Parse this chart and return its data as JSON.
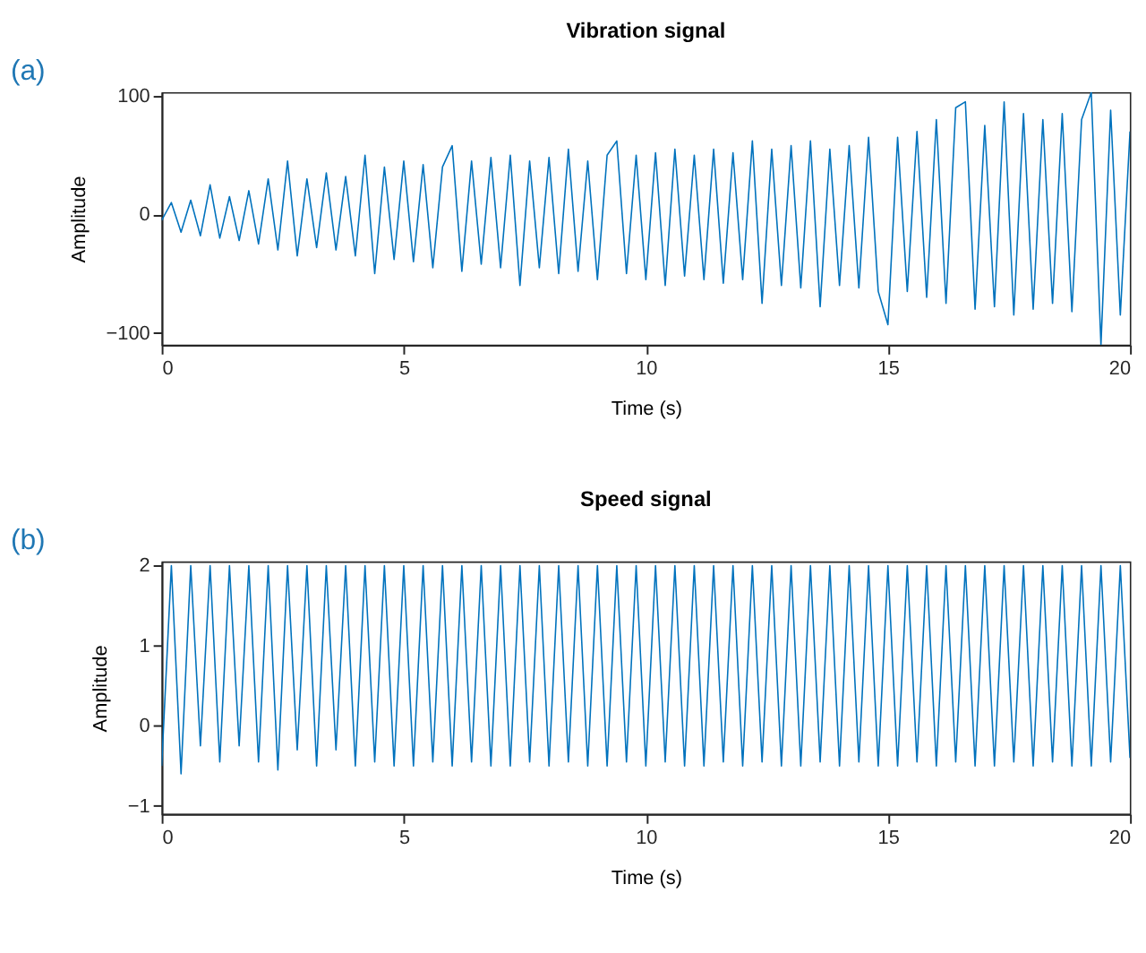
{
  "chart_data": [
    {
      "type": "line",
      "title": "Vibration signal",
      "xlabel": "Time (s)",
      "ylabel": "Amplitude",
      "annotations": [
        "(a)"
      ],
      "color": "#0072bd",
      "grid": false,
      "line_style": "solid",
      "marker": "none",
      "x": [
        0,
        0.2,
        0.4,
        0.6,
        0.8,
        1,
        1.2,
        1.4,
        1.6,
        1.8,
        2,
        2.2,
        2.4,
        2.6,
        2.8,
        3,
        3.2,
        3.4,
        3.6,
        3.8,
        4,
        4.2,
        4.4,
        4.6,
        4.8,
        5,
        5.2,
        5.4,
        5.6,
        5.8,
        6,
        6.2,
        6.4,
        6.6,
        6.8,
        7,
        7.2,
        7.4,
        7.6,
        7.8,
        8,
        8.2,
        8.4,
        8.6,
        8.8,
        9,
        9.2,
        9.4,
        9.6,
        9.8,
        10,
        10.2,
        10.4,
        10.6,
        10.8,
        11,
        11.2,
        11.4,
        11.6,
        11.8,
        12,
        12.2,
        12.4,
        12.6,
        12.8,
        13,
        13.2,
        13.4,
        13.6,
        13.8,
        14,
        14.2,
        14.4,
        14.6,
        14.8,
        15,
        15.2,
        15.4,
        15.6,
        15.8,
        16,
        16.2,
        16.4,
        16.6,
        16.8,
        17,
        17.2,
        17.4,
        17.6,
        17.8,
        18,
        18.2,
        18.4,
        18.6,
        18.8,
        19,
        19.2,
        19.4,
        19.6,
        19.8,
        20
      ],
      "values": [
        -5,
        10,
        -15,
        12,
        -18,
        25,
        -20,
        15,
        -22,
        20,
        -25,
        30,
        -30,
        45,
        -35,
        30,
        -28,
        35,
        -30,
        32,
        -35,
        50,
        -50,
        40,
        -38,
        45,
        -40,
        42,
        -45,
        40,
        58,
        -48,
        45,
        -42,
        48,
        -45,
        50,
        -60,
        45,
        -45,
        48,
        -50,
        55,
        -48,
        45,
        -55,
        50,
        62,
        -50,
        50,
        -55,
        52,
        -60,
        55,
        -52,
        50,
        -55,
        55,
        -58,
        52,
        -55,
        62,
        -75,
        55,
        -60,
        58,
        -62,
        62,
        -78,
        55,
        -60,
        58,
        -62,
        65,
        -65,
        -93,
        65,
        -65,
        70,
        -70,
        80,
        -75,
        90,
        95,
        -80,
        75,
        -78,
        95,
        -85,
        85,
        -80,
        80,
        -75,
        85,
        -82,
        80,
        103,
        -110,
        88,
        -85,
        70
      ],
      "xlim": [
        0,
        20
      ],
      "ylim": [
        -110,
        103
      ],
      "xticks": [
        0,
        5,
        10,
        15,
        20
      ],
      "yticks": [
        -100,
        0,
        100
      ]
    },
    {
      "type": "line",
      "title": "Speed signal",
      "xlabel": "Time (s)",
      "ylabel": "Amplitude",
      "annotations": [
        "(b)"
      ],
      "color": "#0072bd",
      "grid": false,
      "line_style": "solid",
      "marker": "none",
      "x": [
        0,
        0.2,
        0.4,
        0.6,
        0.8,
        1,
        1.2,
        1.4,
        1.6,
        1.8,
        2,
        2.2,
        2.4,
        2.6,
        2.8,
        3,
        3.2,
        3.4,
        3.6,
        3.8,
        4,
        4.2,
        4.4,
        4.6,
        4.8,
        5,
        5.2,
        5.4,
        5.6,
        5.8,
        6,
        6.2,
        6.4,
        6.6,
        6.8,
        7,
        7.2,
        7.4,
        7.6,
        7.8,
        8,
        8.2,
        8.4,
        8.6,
        8.8,
        9,
        9.2,
        9.4,
        9.6,
        9.8,
        10,
        10.2,
        10.4,
        10.6,
        10.8,
        11,
        11.2,
        11.4,
        11.6,
        11.8,
        12,
        12.2,
        12.4,
        12.6,
        12.8,
        13,
        13.2,
        13.4,
        13.6,
        13.8,
        14,
        14.2,
        14.4,
        14.6,
        14.8,
        15,
        15.2,
        15.4,
        15.6,
        15.8,
        16,
        16.2,
        16.4,
        16.6,
        16.8,
        17,
        17.2,
        17.4,
        17.6,
        17.8,
        18,
        18.2,
        18.4,
        18.6,
        18.8,
        19,
        19.2,
        19.4,
        19.6,
        19.8,
        20
      ],
      "values": [
        -0.5,
        2,
        -0.6,
        2,
        -0.25,
        2,
        -0.45,
        2,
        -0.25,
        2,
        -0.45,
        2,
        -0.55,
        2,
        -0.3,
        2,
        -0.5,
        2,
        -0.3,
        2,
        -0.5,
        2,
        -0.45,
        2,
        -0.5,
        2,
        -0.5,
        2,
        -0.45,
        2,
        -0.5,
        2,
        -0.45,
        2,
        -0.5,
        2,
        -0.5,
        2,
        -0.45,
        2,
        -0.5,
        2,
        -0.45,
        2,
        -0.5,
        2,
        -0.5,
        2,
        -0.45,
        2,
        -0.5,
        2,
        -0.45,
        2,
        -0.5,
        2,
        -0.5,
        2,
        -0.45,
        2,
        -0.5,
        2,
        -0.45,
        2,
        -0.5,
        2,
        -0.5,
        2,
        -0.45,
        2,
        -0.5,
        2,
        -0.45,
        2,
        -0.5,
        2,
        -0.5,
        2,
        -0.45,
        2,
        -0.5,
        2,
        -0.45,
        2,
        -0.5,
        2,
        -0.5,
        2,
        -0.45,
        2,
        -0.5,
        2,
        -0.45,
        2,
        -0.5,
        2,
        -0.5,
        2,
        -0.45,
        2,
        -0.4
      ],
      "xlim": [
        0,
        20
      ],
      "ylim": [
        -1.1,
        2.05
      ],
      "xticks": [
        0,
        5,
        10,
        15,
        20
      ],
      "yticks": [
        -1,
        0,
        1,
        2
      ]
    }
  ]
}
